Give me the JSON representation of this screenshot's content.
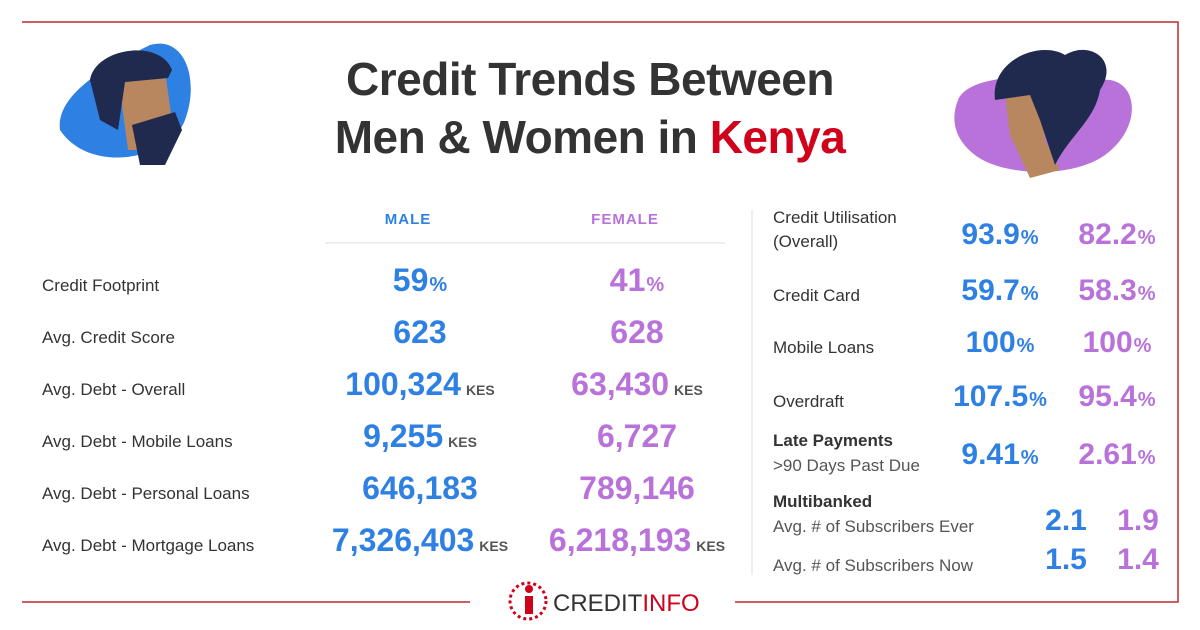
{
  "header": {
    "title_line1": "Credit Trends Between",
    "title_line2_prefix": "Men & Women in",
    "title_line2_highlight": "Kenya"
  },
  "left_table": {
    "columns": [
      "MALE",
      "FEMALE"
    ],
    "rows": [
      {
        "label": "Credit Footprint",
        "male": {
          "value": "59",
          "unit": "%"
        },
        "female": {
          "value": "41",
          "unit": "%"
        }
      },
      {
        "label": "Avg. Credit Score",
        "male": {
          "value": "623"
        },
        "female": {
          "value": "628"
        }
      },
      {
        "label": "Avg. Debt - Overall",
        "male": {
          "value": "100,324",
          "unit": "KES"
        },
        "female": {
          "value": "63,430",
          "unit": "KES"
        }
      },
      {
        "label": "Avg. Debt - Mobile Loans",
        "male": {
          "value": "9,255",
          "unit": "KES"
        },
        "female": {
          "value": "6,727"
        }
      },
      {
        "label": "Avg. Debt - Personal Loans",
        "male": {
          "value": "646,183"
        },
        "female": {
          "value": "789,146"
        }
      },
      {
        "label": "Avg. Debt - Mortgage Loans",
        "male": {
          "value": "7,326,403",
          "unit": "KES"
        },
        "female": {
          "value": "6,218,193",
          "unit": "KES"
        }
      }
    ]
  },
  "right_table": {
    "rows": [
      {
        "label": "Credit Utilisation",
        "sublabel": "(Overall)",
        "male": {
          "value": "93.9",
          "unit": "%"
        },
        "female": {
          "value": "82.2",
          "unit": "%"
        }
      },
      {
        "label": "Credit Card",
        "male": {
          "value": "59.7",
          "unit": "%"
        },
        "female": {
          "value": "58.3",
          "unit": "%"
        }
      },
      {
        "label": "Mobile Loans",
        "male": {
          "value": "100",
          "unit": "%"
        },
        "female": {
          "value": "100",
          "unit": "%"
        }
      },
      {
        "label": "Overdraft",
        "male": {
          "value": "107.5",
          "unit": "%"
        },
        "female": {
          "value": "95.4",
          "unit": "%"
        }
      },
      {
        "heading": "Late Payments",
        "label": ">90 Days Past Due",
        "male": {
          "value": "9.41",
          "unit": "%"
        },
        "female": {
          "value": "2.61",
          "unit": "%"
        }
      }
    ],
    "multibanked": {
      "heading": "Multibanked",
      "rows": [
        {
          "label": "Avg. # of Subscribers Ever",
          "male": {
            "value": "2.1"
          },
          "female": {
            "value": "1.9"
          }
        },
        {
          "label": "Avg. # of Subscribers Now",
          "male": {
            "value": "1.5"
          },
          "female": {
            "value": "1.4"
          }
        }
      ]
    }
  },
  "logo": {
    "part1": "CREDIT",
    "part2": "INFO"
  }
}
